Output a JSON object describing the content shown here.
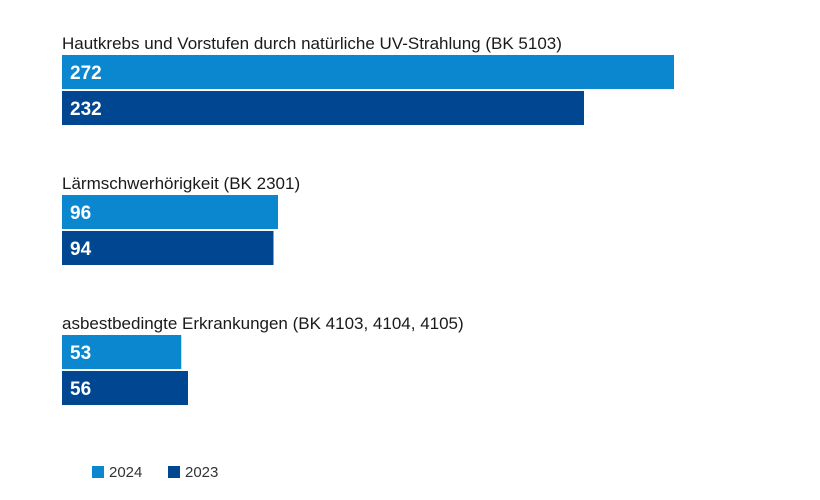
{
  "chart_data": {
    "type": "bar",
    "orientation": "horizontal",
    "categories": [
      "Hautkrebs und Vorstufen durch natürliche UV-Strahlung (BK 5103)",
      "Lärmschwerhörigkeit (BK 2301)",
      "asbestbedingte Erkrankungen (BK 4103, 4104, 4105)"
    ],
    "series": [
      {
        "name": "2024",
        "values": [
          272,
          96,
          53
        ],
        "color": "#0a87cf"
      },
      {
        "name": "2023",
        "values": [
          232,
          94,
          56
        ],
        "color": "#004691"
      }
    ],
    "xlim": [
      0,
      272
    ],
    "grid": false,
    "legend_position": "bottom-left",
    "value_labels": "inside-left"
  }
}
